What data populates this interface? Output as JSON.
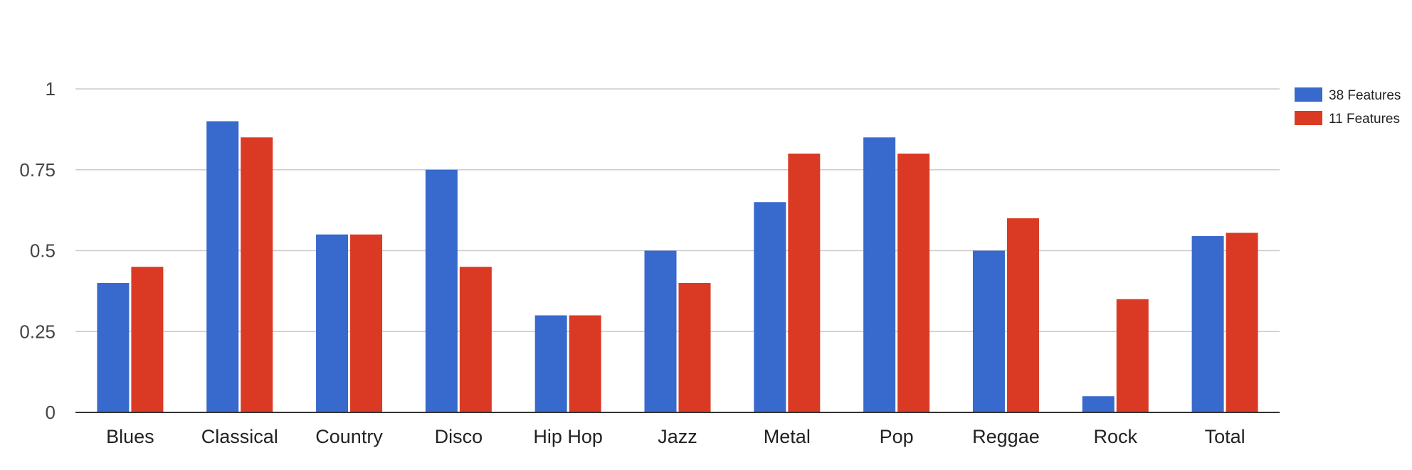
{
  "chart_data": {
    "type": "bar",
    "title": "",
    "xlabel": "",
    "ylabel": "",
    "categories": [
      "Blues",
      "Classical",
      "Country",
      "Disco",
      "Hip Hop",
      "Jazz",
      "Metal",
      "Pop",
      "Reggae",
      "Rock",
      "Total"
    ],
    "series": [
      {
        "name": "38 Features",
        "color": "#3869CC",
        "values": [
          0.4,
          0.9,
          0.55,
          0.75,
          0.3,
          0.5,
          0.65,
          0.85,
          0.5,
          0.05,
          0.545
        ]
      },
      {
        "name": "11 Features",
        "color": "#DA3A24",
        "values": [
          0.45,
          0.85,
          0.55,
          0.45,
          0.3,
          0.4,
          0.8,
          0.8,
          0.6,
          0.35,
          0.555
        ]
      }
    ],
    "ylim": [
      0,
      1
    ],
    "yticks": [
      0,
      0.25,
      0.5,
      0.75,
      1
    ],
    "ytick_labels": [
      "0",
      "0.25",
      "0.5",
      "0.75",
      "1"
    ],
    "grid": true,
    "legend_position": "right"
  }
}
